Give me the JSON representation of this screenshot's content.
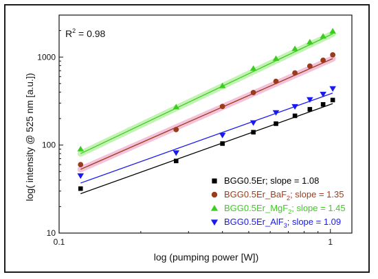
{
  "chart_data": {
    "type": "scatter",
    "xscale": "log",
    "yscale": "log",
    "xlim": [
      0.1,
      1.2
    ],
    "ylim": [
      10,
      3000
    ],
    "xlabel": "log (pumping power [W])",
    "ylabel": "log( intensity @ 525 nm [a.u.])",
    "xticks": [
      {
        "value": 0.1,
        "label": "0.1"
      },
      {
        "value": 1,
        "label": "1"
      }
    ],
    "yticks": [
      {
        "value": 10,
        "label": "10"
      },
      {
        "value": 100,
        "label": "100"
      },
      {
        "value": 1000,
        "label": "1000"
      }
    ],
    "annotation": {
      "prefix": "R",
      "superscript": "2",
      "suffix": " = 0.98"
    },
    "legend_position": "bottom-right",
    "series": [
      {
        "name": "BGG0.5Er; slope = 1.08",
        "legend": {
          "main": "BGG0.5Er; slope = 1.08",
          "sub": "",
          "tail": ""
        },
        "marker": "square",
        "color": "#000000",
        "highlight": "",
        "x": [
          0.12,
          0.27,
          0.4,
          0.52,
          0.63,
          0.74,
          0.84,
          0.94,
          1.02
        ],
        "y": [
          32,
          66,
          104,
          140,
          175,
          215,
          255,
          290,
          325
        ],
        "fit": {
          "x": [
            0.12,
            1.02
          ],
          "y": [
            28,
            296
          ]
        }
      },
      {
        "name": "BGG0.5Er_BaF2; slope = 1.35",
        "legend": {
          "main": "BGG0.5Er_BaF",
          "sub": "2",
          "tail": "; slope = 1.35"
        },
        "marker": "circle",
        "color": "#9c3b1b",
        "highlight": "#f2b8d4",
        "x": [
          0.12,
          0.27,
          0.4,
          0.52,
          0.63,
          0.74,
          0.84,
          0.94,
          1.02
        ],
        "y": [
          60,
          150,
          275,
          395,
          530,
          660,
          790,
          920,
          1060
        ],
        "fit": {
          "x": [
            0.12,
            1.02
          ],
          "y": [
            53,
            960
          ]
        }
      },
      {
        "name": "BGG0.5Er_MgF2; slope = 1.45",
        "legend": {
          "main": "BGG0.5Er_MgF",
          "sub": "2",
          "tail": "; slope = 1.45"
        },
        "marker": "triangle-up",
        "color": "#3ccc1f",
        "highlight": "#b9f2a8",
        "x": [
          0.12,
          0.27,
          0.4,
          0.52,
          0.63,
          0.74,
          0.84,
          0.94,
          1.02
        ],
        "y": [
          90,
          270,
          470,
          740,
          960,
          1240,
          1480,
          1720,
          1960
        ],
        "fit": {
          "x": [
            0.12,
            1.02
          ],
          "y": [
            80,
            1840
          ]
        }
      },
      {
        "name": "BGG0.5Er_AlF3; slope = 1.09",
        "legend": {
          "main": "BGG0.5Er_AlF",
          "sub": "3",
          "tail": "; slope = 1.09"
        },
        "marker": "triangle-down",
        "color": "#1a1aee",
        "highlight": "",
        "x": [
          0.12,
          0.27,
          0.4,
          0.52,
          0.63,
          0.74,
          0.84,
          0.94,
          1.02
        ],
        "y": [
          45,
          82,
          130,
          180,
          235,
          275,
          330,
          380,
          440
        ],
        "fit": {
          "x": [
            0.12,
            1.02
          ],
          "y": [
            37,
            390
          ]
        }
      }
    ]
  }
}
